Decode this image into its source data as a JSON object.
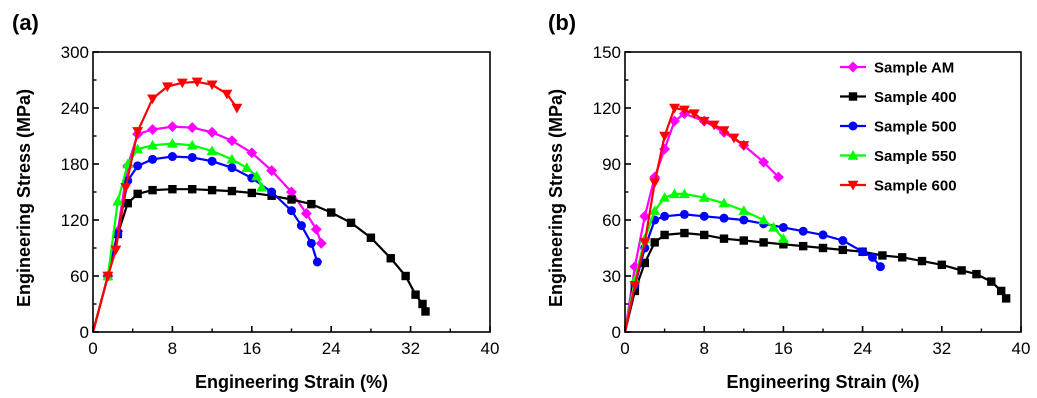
{
  "chart_data": [
    {
      "type": "line",
      "panel_label": "(a)",
      "xlabel": "Engineering Strain (%)",
      "ylabel": "Engineering Stress (MPa)",
      "xlim": [
        0,
        40
      ],
      "ylim": [
        0,
        300
      ],
      "xticks": [
        "0",
        "8",
        "16",
        "24",
        "32",
        "40"
      ],
      "yticks": [
        "0",
        "60",
        "120",
        "180",
        "240",
        "300"
      ],
      "grid": false,
      "series": [
        {
          "name": "Sample AM",
          "color": "#ff00ff",
          "marker": "diamond",
          "x": [
            0,
            1.5,
            2.5,
            3.5,
            4.5,
            6,
            8,
            10,
            12,
            14,
            16,
            18,
            20,
            21.5,
            22.5,
            23
          ],
          "y": [
            0,
            60,
            108,
            178,
            212,
            217,
            220,
            219,
            214,
            205,
            192,
            173,
            150,
            127,
            110,
            95
          ]
        },
        {
          "name": "Sample 400",
          "color": "#000000",
          "marker": "square",
          "x": [
            0,
            1.5,
            2.5,
            3.5,
            4.5,
            6,
            8,
            10,
            12,
            14,
            16,
            18,
            20,
            22,
            24,
            26,
            28,
            30,
            31.5,
            32.5,
            33.2,
            33.5
          ],
          "y": [
            0,
            60,
            105,
            138,
            148,
            152,
            153,
            153,
            152,
            151,
            149,
            146,
            142,
            137,
            128,
            117,
            101,
            79,
            60,
            40,
            30,
            22
          ]
        },
        {
          "name": "Sample 500",
          "color": "#0000ff",
          "marker": "circle",
          "x": [
            0,
            1.5,
            2.5,
            3.5,
            4.5,
            6,
            8,
            10,
            12,
            14,
            16,
            18,
            20,
            21,
            22,
            22.6
          ],
          "y": [
            0,
            60,
            105,
            162,
            178,
            185,
            188,
            187,
            183,
            176,
            165,
            150,
            130,
            114,
            95,
            75
          ]
        },
        {
          "name": "Sample 550",
          "color": "#00ff00",
          "marker": "triangle-up",
          "x": [
            0,
            1.5,
            2.5,
            3.5,
            4.5,
            6,
            8,
            10,
            12,
            14,
            15.5,
            16.5,
            17
          ],
          "y": [
            0,
            60,
            140,
            180,
            196,
            200,
            202,
            200,
            194,
            185,
            176,
            167,
            155
          ]
        },
        {
          "name": "Sample 600",
          "color": "#ff0000",
          "marker": "triangle-down",
          "x": [
            0,
            1.5,
            2.3,
            3.3,
            4.5,
            6,
            7.5,
            9,
            10.5,
            12,
            13.5,
            14.5
          ],
          "y": [
            0,
            60,
            88,
            155,
            215,
            250,
            263,
            267,
            268,
            265,
            255,
            240
          ]
        }
      ]
    },
    {
      "type": "line",
      "panel_label": "(b)",
      "xlabel": "Engineering Strain (%)",
      "ylabel": "Engineering Stress (MPa)",
      "xlim": [
        0,
        40
      ],
      "ylim": [
        0,
        150
      ],
      "xticks": [
        "0",
        "8",
        "16",
        "24",
        "32",
        "40"
      ],
      "yticks": [
        "0",
        "30",
        "60",
        "90",
        "120",
        "150"
      ],
      "grid": false,
      "legend_position": "top-right",
      "series": [
        {
          "name": "Sample AM",
          "color": "#ff00ff",
          "marker": "diamond",
          "x": [
            0,
            1,
            2,
            3,
            4,
            5,
            6,
            8,
            10,
            12,
            14,
            15.5
          ],
          "y": [
            0,
            35,
            62,
            83,
            98,
            113,
            117,
            113,
            107,
            100,
            91,
            83
          ]
        },
        {
          "name": "Sample 400",
          "color": "#000000",
          "marker": "square",
          "x": [
            0,
            1,
            2,
            3,
            4,
            6,
            8,
            10,
            12,
            14,
            16,
            18,
            20,
            22,
            24,
            26,
            28,
            30,
            32,
            34,
            35.5,
            37,
            38,
            38.5
          ],
          "y": [
            0,
            22,
            37,
            48,
            52,
            53,
            52,
            50,
            49,
            48,
            47,
            46,
            45,
            44,
            43,
            41,
            40,
            38,
            36,
            33,
            31,
            27,
            22,
            18
          ]
        },
        {
          "name": "Sample 500",
          "color": "#0000ff",
          "marker": "circle",
          "x": [
            0,
            1,
            2,
            3,
            4,
            6,
            8,
            10,
            12,
            14,
            16,
            18,
            20,
            22,
            24,
            25,
            25.8
          ],
          "y": [
            0,
            25,
            45,
            60,
            62,
            63,
            62,
            61,
            60,
            58,
            56,
            54,
            52,
            49,
            43,
            40,
            35
          ]
        },
        {
          "name": "Sample 550",
          "color": "#00ff00",
          "marker": "triangle-up",
          "x": [
            0,
            1,
            2,
            3,
            4,
            5,
            6,
            8,
            10,
            12,
            14,
            15,
            16
          ],
          "y": [
            0,
            28,
            50,
            65,
            72,
            74,
            74,
            72,
            69,
            65,
            60,
            56,
            50
          ]
        },
        {
          "name": "Sample 600",
          "color": "#ff0000",
          "marker": "triangle-down",
          "x": [
            0,
            1,
            2,
            3,
            4,
            5,
            6,
            7,
            8,
            9,
            10,
            11,
            12
          ],
          "y": [
            0,
            25,
            48,
            80,
            105,
            120,
            119,
            117,
            113,
            111,
            108,
            104,
            100
          ]
        }
      ]
    }
  ]
}
